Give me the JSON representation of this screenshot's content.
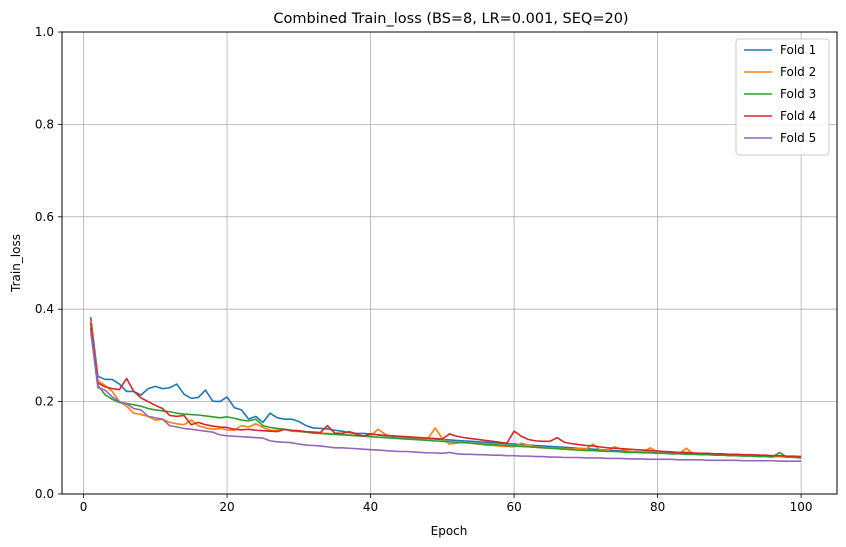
{
  "chart_data": {
    "type": "line",
    "title": "Combined Train_loss (BS=8, LR=0.001, SEQ=20)",
    "xlabel": "Epoch",
    "ylabel": "Train_loss",
    "xlim": [
      -3,
      105
    ],
    "ylim": [
      0,
      1.0
    ],
    "xticks": [
      0,
      20,
      40,
      60,
      80,
      100
    ],
    "yticks": [
      0.0,
      0.2,
      0.4,
      0.6,
      0.8,
      1.0
    ],
    "xtick_labels": [
      "0",
      "20",
      "40",
      "60",
      "80",
      "100"
    ],
    "ytick_labels": [
      "0.0",
      "0.2",
      "0.4",
      "0.6",
      "0.8",
      "1.0"
    ],
    "grid": true,
    "legend_position": "top-right",
    "x": [
      1,
      2,
      3,
      4,
      5,
      6,
      7,
      8,
      9,
      10,
      11,
      12,
      13,
      14,
      15,
      16,
      17,
      18,
      19,
      20,
      21,
      22,
      23,
      24,
      25,
      26,
      27,
      28,
      29,
      30,
      31,
      32,
      33,
      34,
      35,
      36,
      37,
      38,
      39,
      40,
      41,
      42,
      43,
      44,
      45,
      46,
      47,
      48,
      49,
      50,
      51,
      52,
      53,
      54,
      55,
      56,
      57,
      58,
      59,
      60,
      61,
      62,
      63,
      64,
      65,
      66,
      67,
      68,
      69,
      70,
      71,
      72,
      73,
      74,
      75,
      76,
      77,
      78,
      79,
      80,
      81,
      82,
      83,
      84,
      85,
      86,
      87,
      88,
      89,
      90,
      91,
      92,
      93,
      94,
      95,
      96,
      97,
      98,
      99,
      100
    ],
    "series": [
      {
        "name": "Fold 1",
        "color": "#1f77b4",
        "values": [
          0.383,
          0.255,
          0.248,
          0.248,
          0.238,
          0.222,
          0.222,
          0.214,
          0.228,
          0.233,
          0.228,
          0.23,
          0.238,
          0.216,
          0.207,
          0.209,
          0.225,
          0.201,
          0.2,
          0.21,
          0.187,
          0.182,
          0.162,
          0.168,
          0.155,
          0.175,
          0.165,
          0.162,
          0.162,
          0.157,
          0.148,
          0.143,
          0.142,
          0.141,
          0.138,
          0.136,
          0.133,
          0.131,
          0.131,
          0.13,
          0.128,
          0.126,
          0.125,
          0.124,
          0.123,
          0.122,
          0.121,
          0.12,
          0.119,
          0.118,
          0.117,
          0.116,
          0.115,
          0.114,
          0.113,
          0.112,
          0.111,
          0.11,
          0.109,
          0.108,
          0.107,
          0.106,
          0.105,
          0.104,
          0.103,
          0.102,
          0.101,
          0.1,
          0.099,
          0.098,
          0.097,
          0.096,
          0.095,
          0.094,
          0.093,
          0.092,
          0.091,
          0.091,
          0.09,
          0.089,
          0.089,
          0.088,
          0.088,
          0.087,
          0.087,
          0.086,
          0.086,
          0.085,
          0.085,
          0.084,
          0.084,
          0.083,
          0.083,
          0.082,
          0.082,
          0.081,
          0.081,
          0.08,
          0.08,
          0.079
        ]
      },
      {
        "name": "Fold 2",
        "color": "#ff7f0e",
        "values": [
          0.375,
          0.245,
          0.235,
          0.222,
          0.2,
          0.19,
          0.175,
          0.172,
          0.168,
          0.16,
          0.162,
          0.155,
          0.152,
          0.15,
          0.16,
          0.148,
          0.143,
          0.14,
          0.142,
          0.139,
          0.138,
          0.148,
          0.145,
          0.152,
          0.144,
          0.138,
          0.138,
          0.14,
          0.136,
          0.135,
          0.134,
          0.133,
          0.132,
          0.131,
          0.13,
          0.129,
          0.128,
          0.127,
          0.126,
          0.125,
          0.14,
          0.13,
          0.122,
          0.121,
          0.12,
          0.119,
          0.118,
          0.12,
          0.143,
          0.12,
          0.108,
          0.11,
          0.112,
          0.11,
          0.108,
          0.106,
          0.105,
          0.104,
          0.103,
          0.102,
          0.11,
          0.106,
          0.102,
          0.1,
          0.1,
          0.099,
          0.098,
          0.097,
          0.099,
          0.097,
          0.108,
          0.095,
          0.094,
          0.102,
          0.097,
          0.093,
          0.09,
          0.092,
          0.1,
          0.09,
          0.088,
          0.087,
          0.087,
          0.099,
          0.086,
          0.087,
          0.086,
          0.085,
          0.085,
          0.084,
          0.084,
          0.083,
          0.083,
          0.085,
          0.082,
          0.081,
          0.081,
          0.08,
          0.08,
          0.079
        ]
      },
      {
        "name": "Fold 3",
        "color": "#2ca02c",
        "values": [
          0.36,
          0.235,
          0.215,
          0.205,
          0.198,
          0.196,
          0.193,
          0.19,
          0.185,
          0.182,
          0.18,
          0.178,
          0.175,
          0.173,
          0.172,
          0.171,
          0.169,
          0.167,
          0.165,
          0.167,
          0.164,
          0.16,
          0.158,
          0.162,
          0.148,
          0.144,
          0.142,
          0.14,
          0.137,
          0.136,
          0.134,
          0.132,
          0.131,
          0.13,
          0.129,
          0.128,
          0.127,
          0.126,
          0.125,
          0.124,
          0.123,
          0.122,
          0.121,
          0.12,
          0.119,
          0.118,
          0.117,
          0.116,
          0.115,
          0.114,
          0.113,
          0.112,
          0.111,
          0.11,
          0.109,
          0.108,
          0.107,
          0.106,
          0.105,
          0.104,
          0.103,
          0.102,
          0.101,
          0.1,
          0.099,
          0.098,
          0.097,
          0.096,
          0.095,
          0.094,
          0.094,
          0.093,
          0.092,
          0.092,
          0.091,
          0.09,
          0.09,
          0.089,
          0.089,
          0.088,
          0.088,
          0.087,
          0.087,
          0.086,
          0.086,
          0.085,
          0.085,
          0.084,
          0.084,
          0.083,
          0.083,
          0.082,
          0.082,
          0.081,
          0.081,
          0.08,
          0.09,
          0.08,
          0.079,
          0.078
        ]
      },
      {
        "name": "Fold 4",
        "color": "#d62728",
        "values": [
          0.37,
          0.24,
          0.232,
          0.228,
          0.226,
          0.25,
          0.222,
          0.208,
          0.2,
          0.192,
          0.185,
          0.17,
          0.168,
          0.17,
          0.15,
          0.155,
          0.15,
          0.147,
          0.145,
          0.144,
          0.14,
          0.139,
          0.14,
          0.138,
          0.137,
          0.136,
          0.135,
          0.14,
          0.138,
          0.137,
          0.135,
          0.134,
          0.133,
          0.148,
          0.132,
          0.131,
          0.135,
          0.13,
          0.125,
          0.13,
          0.128,
          0.127,
          0.126,
          0.125,
          0.124,
          0.123,
          0.122,
          0.121,
          0.12,
          0.119,
          0.13,
          0.125,
          0.122,
          0.12,
          0.118,
          0.116,
          0.114,
          0.112,
          0.11,
          0.136,
          0.125,
          0.118,
          0.115,
          0.114,
          0.114,
          0.122,
          0.112,
          0.109,
          0.107,
          0.105,
          0.104,
          0.102,
          0.1,
          0.099,
          0.098,
          0.097,
          0.096,
          0.095,
          0.094,
          0.093,
          0.092,
          0.091,
          0.09,
          0.09,
          0.089,
          0.088,
          0.088,
          0.087,
          0.087,
          0.086,
          0.086,
          0.085,
          0.085,
          0.084,
          0.084,
          0.083,
          0.083,
          0.082,
          0.082,
          0.081
        ]
      },
      {
        "name": "Fold 5",
        "color": "#9467bd",
        "values": [
          0.352,
          0.23,
          0.225,
          0.21,
          0.2,
          0.195,
          0.185,
          0.182,
          0.168,
          0.165,
          0.162,
          0.148,
          0.145,
          0.142,
          0.14,
          0.138,
          0.136,
          0.134,
          0.128,
          0.126,
          0.125,
          0.124,
          0.123,
          0.122,
          0.121,
          0.115,
          0.113,
          0.112,
          0.111,
          0.108,
          0.106,
          0.105,
          0.104,
          0.102,
          0.1,
          0.1,
          0.099,
          0.098,
          0.097,
          0.096,
          0.095,
          0.094,
          0.093,
          0.092,
          0.092,
          0.091,
          0.09,
          0.089,
          0.089,
          0.088,
          0.09,
          0.087,
          0.086,
          0.086,
          0.085,
          0.085,
          0.084,
          0.084,
          0.083,
          0.083,
          0.082,
          0.082,
          0.081,
          0.081,
          0.08,
          0.08,
          0.079,
          0.079,
          0.079,
          0.078,
          0.078,
          0.078,
          0.077,
          0.077,
          0.077,
          0.076,
          0.076,
          0.076,
          0.075,
          0.075,
          0.075,
          0.075,
          0.074,
          0.074,
          0.074,
          0.074,
          0.073,
          0.073,
          0.073,
          0.073,
          0.073,
          0.072,
          0.072,
          0.072,
          0.072,
          0.072,
          0.071,
          0.071,
          0.071,
          0.071
        ]
      }
    ]
  }
}
